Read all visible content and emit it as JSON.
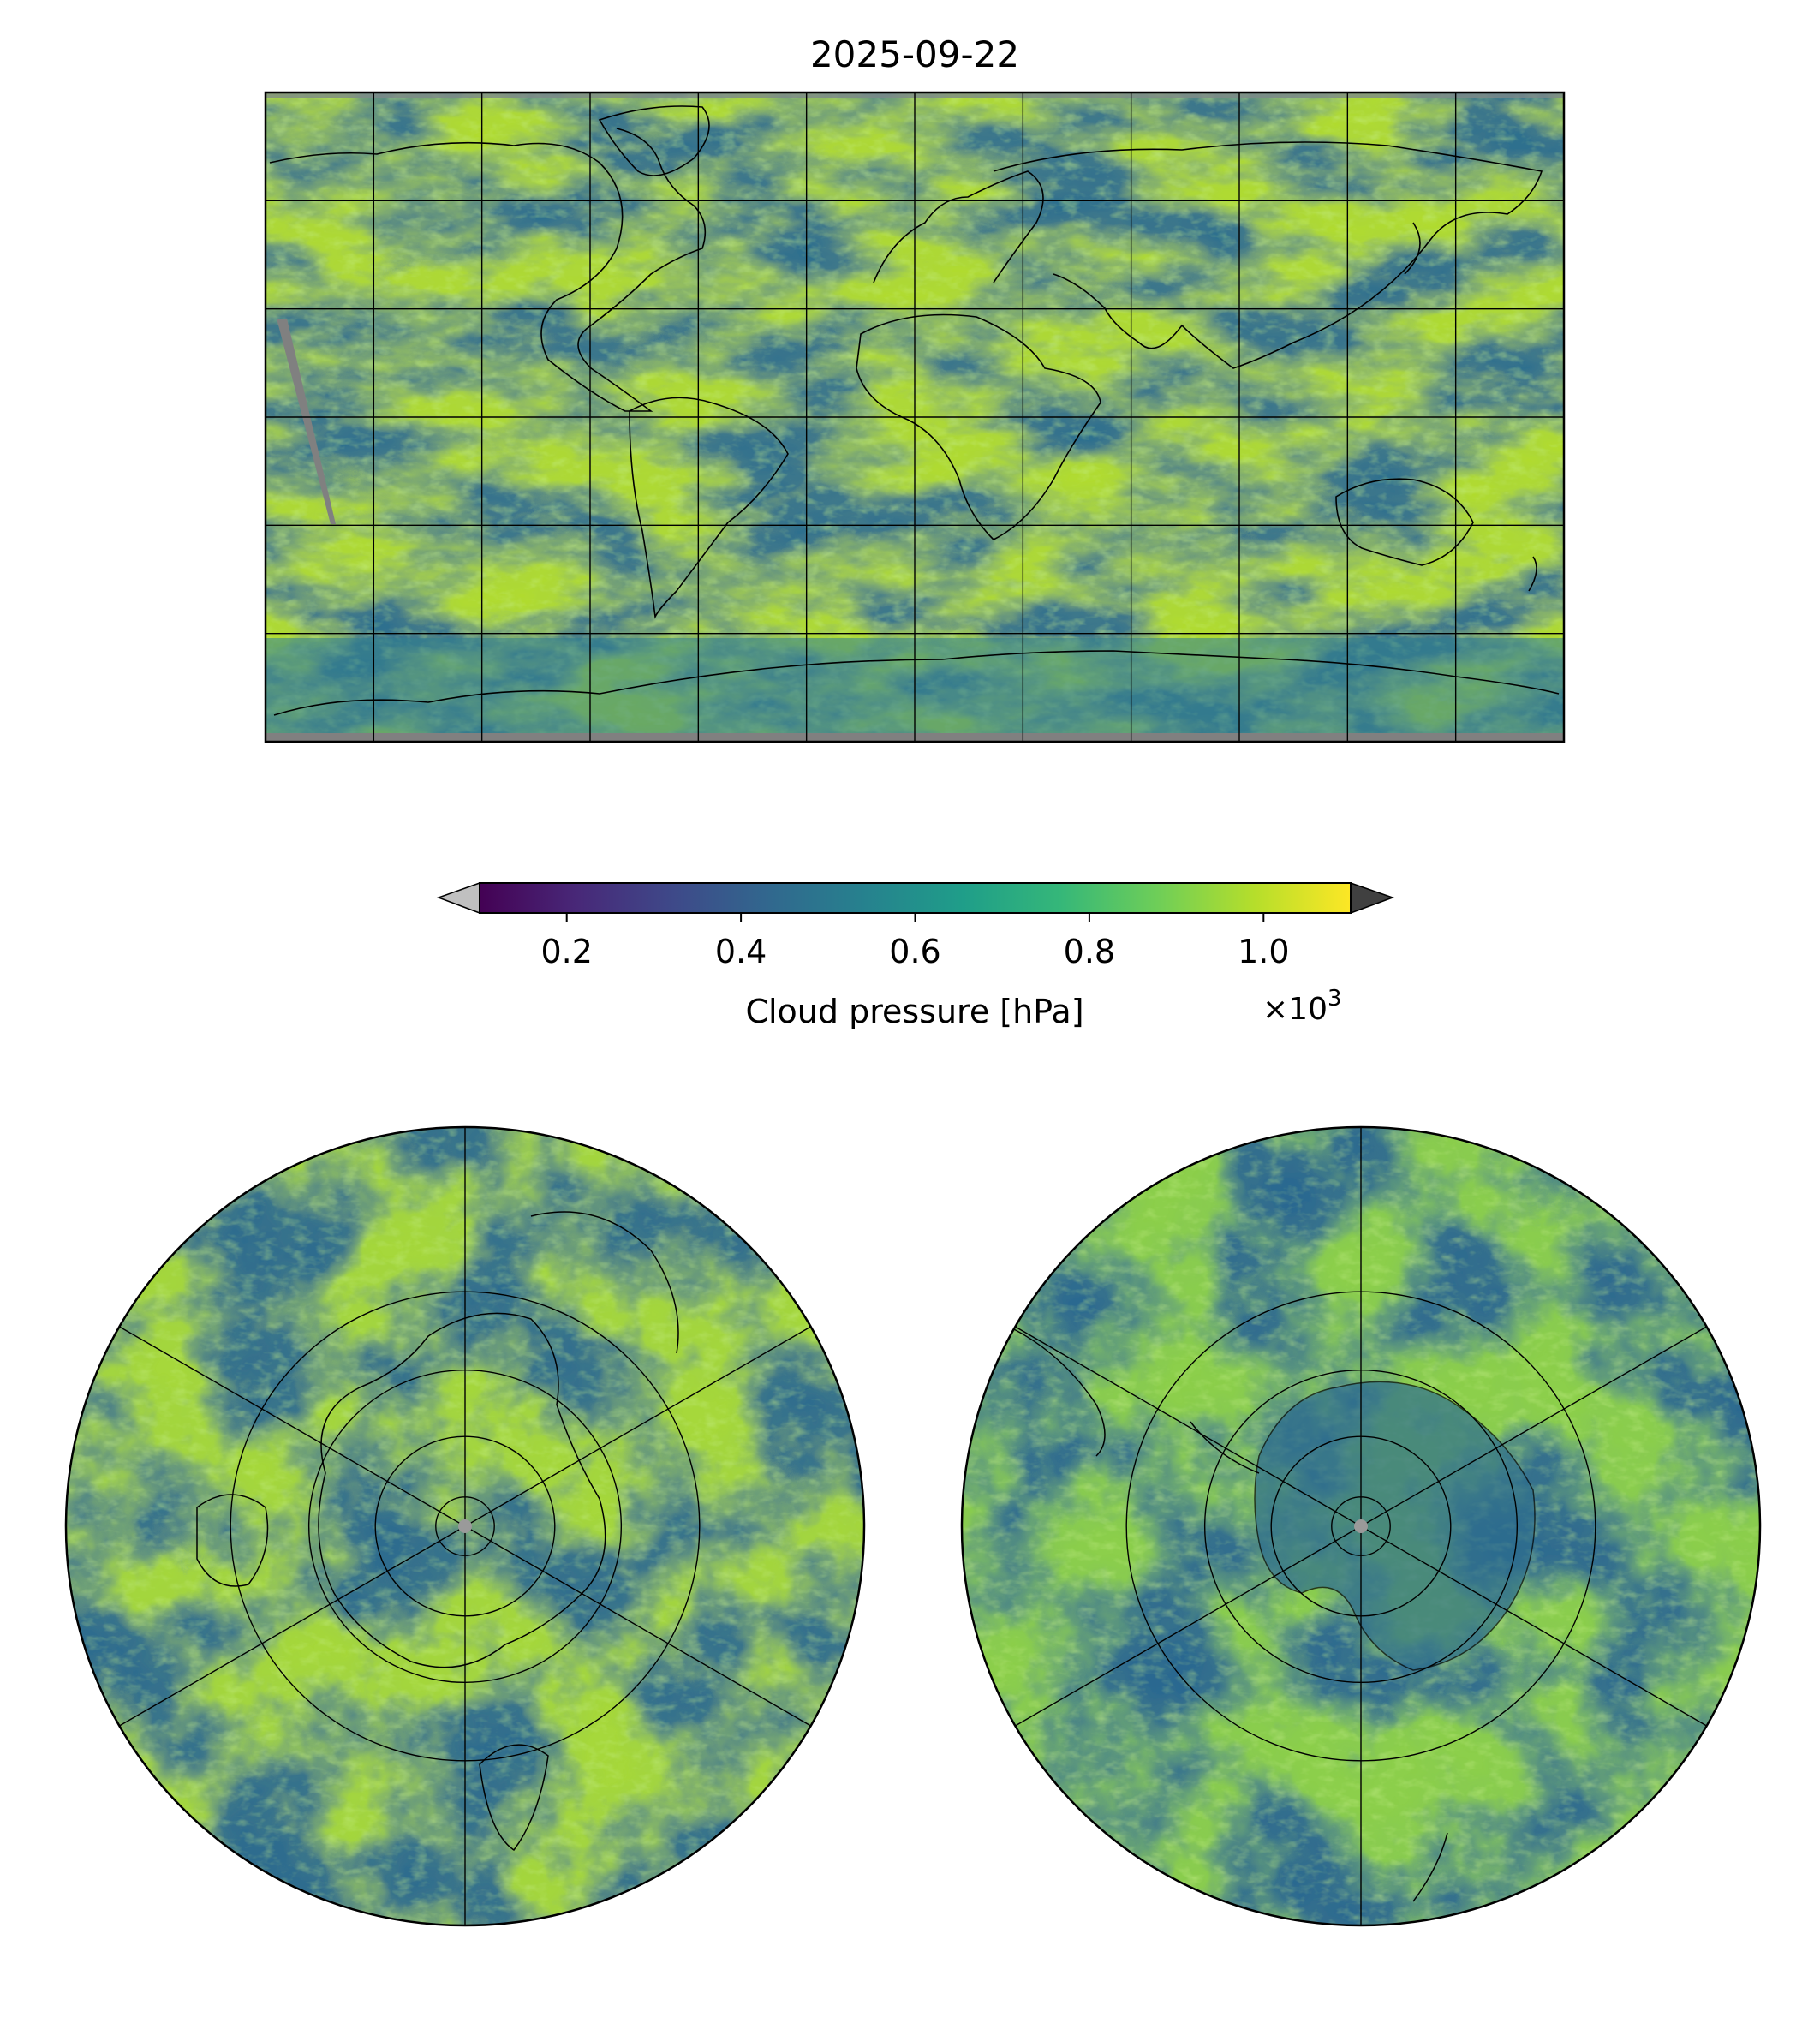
{
  "figure": {
    "title": "2025-09-22"
  },
  "colorbar": {
    "label": "Cloud pressure [hPa]",
    "multiplier": "×10",
    "multiplier_exp": "3",
    "ticks": [
      {
        "value": 0.2,
        "label": "0.2"
      },
      {
        "value": 0.4,
        "label": "0.4"
      },
      {
        "value": 0.6,
        "label": "0.6"
      },
      {
        "value": 0.8,
        "label": "0.8"
      },
      {
        "value": 1.0,
        "label": "1.0"
      }
    ],
    "range": [
      0.1,
      1.1
    ],
    "extend": "both",
    "under_color": "#c0c0c0",
    "over_color": "#404040",
    "colormap": "viridis",
    "colormap_stops": [
      "#440154",
      "#482878",
      "#3e4989",
      "#31688e",
      "#26828e",
      "#1f9e89",
      "#35b779",
      "#6ece58",
      "#b5de2b",
      "#fde725"
    ],
    "missing_color": "#808080"
  },
  "maps": {
    "global": {
      "projection": "PlateCarree",
      "lon_range": [
        -180,
        180
      ],
      "lat_range": [
        -90,
        90
      ],
      "gridline_spacing_deg": 30
    },
    "north_polar": {
      "projection": "NorthPolarStereo",
      "lat_circles": [
        80,
        60,
        40,
        20
      ],
      "meridians_deg": 60
    },
    "south_polar": {
      "projection": "SouthPolarStereo",
      "lat_circles": [
        -80,
        -60,
        -40,
        -20
      ],
      "meridians_deg": 60
    }
  }
}
